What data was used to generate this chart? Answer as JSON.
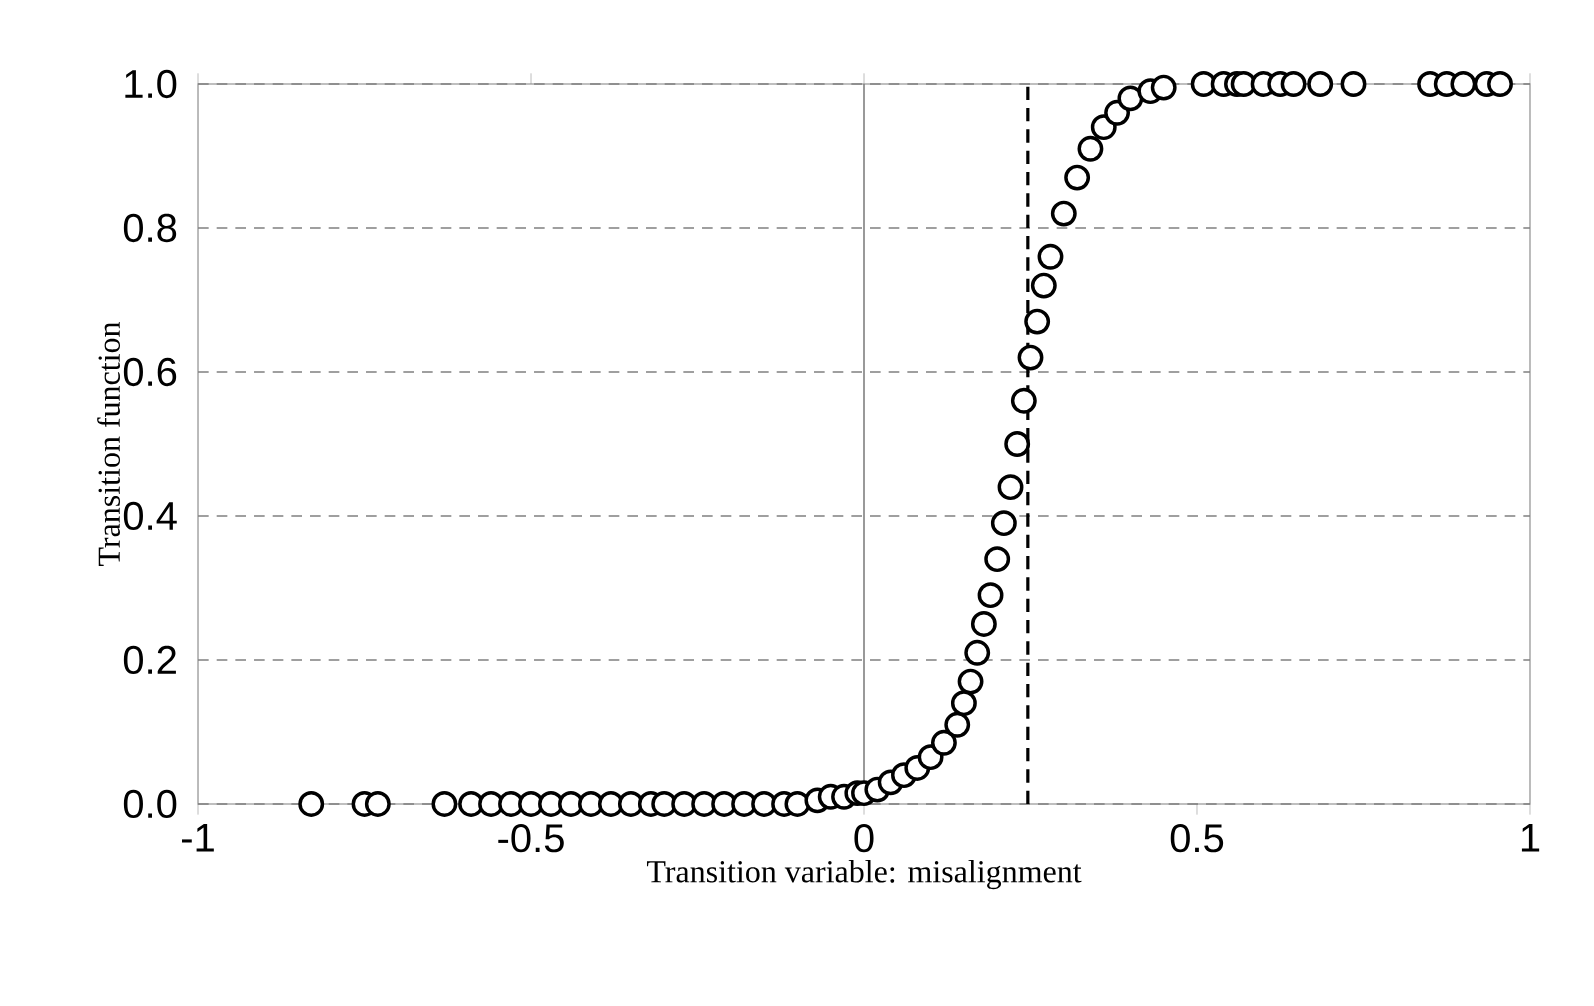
{
  "chart_data": {
    "type": "scatter",
    "xlabel": "Transition variable: misalignment",
    "ylabel": "Transition function",
    "xlim": [
      -1,
      1
    ],
    "ylim": [
      0,
      1
    ],
    "xticks": [
      -1,
      -0.5,
      0,
      0.5,
      1
    ],
    "yticks": [
      {
        "value": 0,
        "label": "0.0"
      },
      {
        "value": 0.2,
        "label": "0.2"
      },
      {
        "value": 0.4,
        "label": "0.4"
      },
      {
        "value": 0.6,
        "label": "0.6"
      },
      {
        "value": 0.8,
        "label": "0.8"
      },
      {
        "value": 1,
        "label": "1.0"
      }
    ],
    "grid": "y",
    "marker": "circle",
    "ref_lines": [
      {
        "axis": "x",
        "value": 0,
        "color": "#808080",
        "line_style": "solid"
      },
      {
        "axis": "x",
        "value": 0.246,
        "color": "#000000",
        "line_style": "dashed"
      }
    ],
    "series": [
      {
        "color": "#000000",
        "x": [
          -0.83,
          -0.75,
          -0.73,
          -0.63,
          -0.59,
          -0.56,
          -0.53,
          -0.5,
          -0.47,
          -0.44,
          -0.41,
          -0.38,
          -0.35,
          -0.32,
          -0.3,
          -0.27,
          -0.24,
          -0.21,
          -0.18,
          -0.15,
          -0.12,
          -0.1,
          -0.07,
          -0.05,
          -0.03,
          -0.01,
          0.0,
          0.02,
          0.04,
          0.06,
          0.08,
          0.1,
          0.12,
          0.14,
          0.15,
          0.16,
          0.17,
          0.18,
          0.19,
          0.2,
          0.21,
          0.22,
          0.23,
          0.24,
          0.25,
          0.26,
          0.27,
          0.28,
          0.3,
          0.32,
          0.34,
          0.36,
          0.38,
          0.4,
          0.43,
          0.45,
          0.51,
          0.54,
          0.56,
          0.57,
          0.6,
          0.625,
          0.645,
          0.685,
          0.735,
          0.85,
          0.875,
          0.9,
          0.935,
          0.955
        ],
        "values": [
          0,
          0,
          0,
          0,
          0,
          0,
          0,
          0,
          0,
          0,
          0,
          0,
          0,
          0,
          0,
          0,
          0,
          0,
          0,
          0,
          0,
          0,
          0.005,
          0.01,
          0.01,
          0.015,
          0.015,
          0.02,
          0.03,
          0.04,
          0.05,
          0.065,
          0.085,
          0.11,
          0.14,
          0.17,
          0.21,
          0.25,
          0.29,
          0.34,
          0.39,
          0.44,
          0.5,
          0.56,
          0.62,
          0.67,
          0.72,
          0.76,
          0.82,
          0.87,
          0.91,
          0.94,
          0.96,
          0.98,
          0.99,
          0.995,
          1,
          1,
          1,
          1,
          1,
          1,
          1,
          1,
          1,
          1,
          1,
          1,
          1,
          1
        ]
      }
    ]
  }
}
